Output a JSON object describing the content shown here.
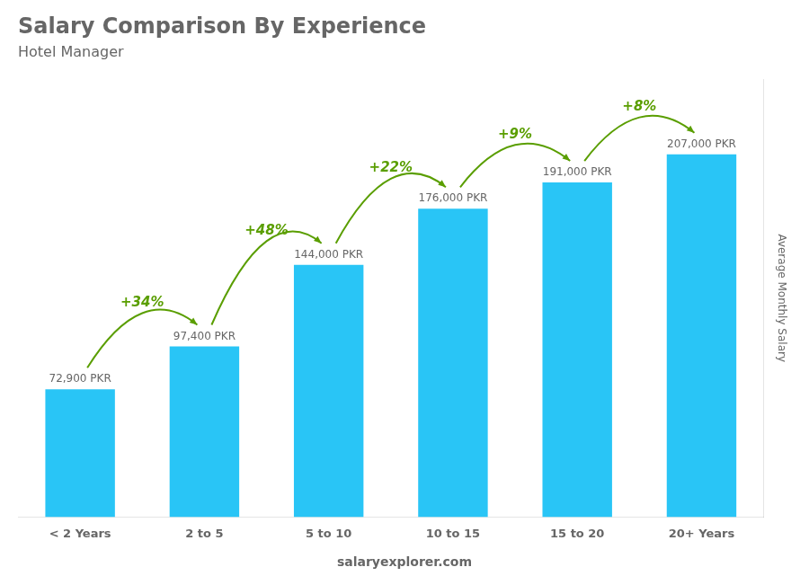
{
  "chart_data": {
    "type": "bar",
    "title": "Salary Comparison By Experience",
    "subtitle": "Hotel Manager",
    "categories": [
      "< 2 Years",
      "2 to 5",
      "5 to 10",
      "10 to 15",
      "15 to 20",
      "20+ Years"
    ],
    "values": [
      72900,
      97400,
      144000,
      176000,
      191000,
      207000
    ],
    "value_labels": [
      "72,900 PKR",
      "97,400 PKR",
      "144,000 PKR",
      "176,000 PKR",
      "191,000 PKR",
      "207,000 PKR"
    ],
    "data_labels": true,
    "color": "#29c5f6",
    "annotations": [
      "+34%",
      "+48%",
      "+22%",
      "+9%",
      "+8%"
    ],
    "y_label": "Average Monthly Salary",
    "footer": "salaryexplorer.com",
    "ylim": [
      0,
      250000
    ],
    "grid": false,
    "tick_labels": "x"
  }
}
